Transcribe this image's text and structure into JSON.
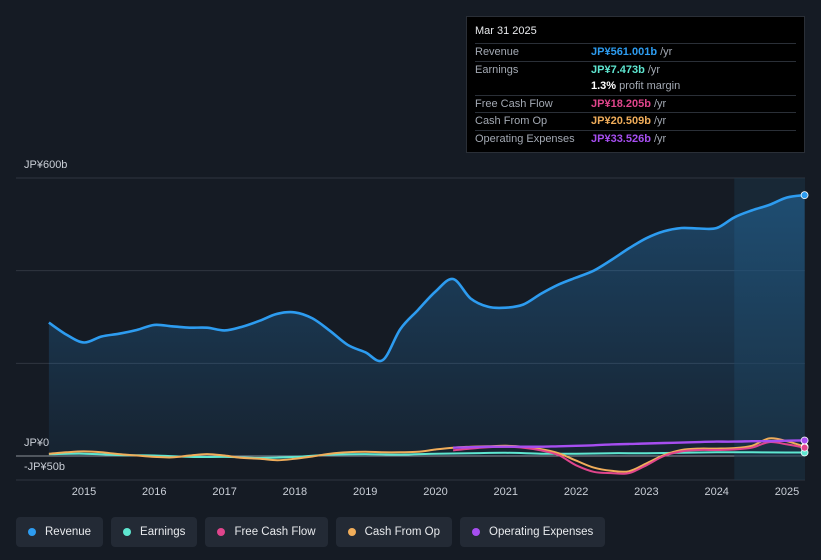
{
  "tooltip": {
    "date": "Mar 31 2025",
    "rows": [
      {
        "label": "Revenue",
        "value": "JP¥561.001b",
        "unit": "/yr",
        "color": "#2d9cf0"
      },
      {
        "label": "Earnings",
        "value": "JP¥7.473b",
        "unit": "/yr",
        "color": "#5ee6d0"
      },
      {
        "label": "",
        "value": "1.3%",
        "unit": "profit margin",
        "color": "#ffffff"
      },
      {
        "label": "Free Cash Flow",
        "value": "JP¥18.205b",
        "unit": "/yr",
        "color": "#e0458c"
      },
      {
        "label": "Cash From Op",
        "value": "JP¥20.509b",
        "unit": "/yr",
        "color": "#f0ad5a"
      },
      {
        "label": "Operating Expenses",
        "value": "JP¥33.526b",
        "unit": "/yr",
        "color": "#a64ef0"
      }
    ]
  },
  "legend": [
    {
      "label": "Revenue",
      "color": "#2d9cf0"
    },
    {
      "label": "Earnings",
      "color": "#5ee6d0"
    },
    {
      "label": "Free Cash Flow",
      "color": "#e0458c"
    },
    {
      "label": "Cash From Op",
      "color": "#f0ad5a"
    },
    {
      "label": "Operating Expenses",
      "color": "#a64ef0"
    }
  ],
  "chart_data": {
    "type": "line",
    "ylim": [
      -50,
      600
    ],
    "y_tick_labels": [
      {
        "value": 600,
        "label": "JP¥600b"
      },
      {
        "value": 0,
        "label": "JP¥0"
      },
      {
        "value": -50,
        "label": "-JP¥50b"
      }
    ],
    "x_ticks": [
      2015,
      2016,
      2017,
      2018,
      2019,
      2020,
      2021,
      2022,
      2023,
      2024,
      2025
    ],
    "xlim": [
      2014.45,
      2025.33
    ],
    "highlight_start": 2024.25,
    "series": [
      {
        "name": "Revenue",
        "color": "#2d9cf0",
        "x": [
          2014.5,
          2014.75,
          2015.0,
          2015.25,
          2015.5,
          2015.75,
          2016.0,
          2016.25,
          2016.5,
          2016.75,
          2017.0,
          2017.25,
          2017.5,
          2017.75,
          2018.0,
          2018.25,
          2018.5,
          2018.75,
          2019.0,
          2019.25,
          2019.5,
          2019.75,
          2020.0,
          2020.25,
          2020.5,
          2020.75,
          2021.0,
          2021.25,
          2021.5,
          2021.75,
          2022.0,
          2022.25,
          2022.5,
          2022.75,
          2023.0,
          2023.25,
          2023.5,
          2023.75,
          2024.0,
          2024.25,
          2024.5,
          2024.75,
          2025.0,
          2025.25
        ],
        "values": [
          288,
          262,
          245,
          258,
          264,
          272,
          283,
          280,
          277,
          277,
          271,
          279,
          292,
          307,
          310,
          297,
          270,
          240,
          224,
          207,
          274,
          315,
          355,
          382,
          340,
          322,
          320,
          327,
          350,
          370,
          385,
          400,
          423,
          448,
          470,
          485,
          492,
          491,
          492,
          515,
          530,
          542,
          558,
          563
        ]
      },
      {
        "name": "Earnings",
        "color": "#5ee6d0",
        "x": [
          2014.5,
          2015.0,
          2015.5,
          2016.0,
          2016.5,
          2017.0,
          2017.5,
          2018.0,
          2018.5,
          2019.0,
          2019.5,
          2020.0,
          2020.5,
          2021.0,
          2021.5,
          2022.0,
          2022.5,
          2023.0,
          2023.5,
          2024.0,
          2024.5,
          2025.0,
          2025.25
        ],
        "values": [
          4,
          5,
          2,
          1,
          -2,
          -2,
          -4,
          -2,
          3,
          4,
          3,
          5,
          6,
          7,
          5,
          5,
          6,
          6,
          7,
          8,
          8,
          7.5,
          7.5
        ]
      },
      {
        "name": "Free Cash Flow",
        "color": "#e0458c",
        "x": [
          2020.25,
          2020.5,
          2020.75,
          2021.0,
          2021.25,
          2021.5,
          2021.75,
          2022.0,
          2022.25,
          2022.5,
          2022.75,
          2023.0,
          2023.25,
          2023.5,
          2023.75,
          2024.0,
          2024.25,
          2024.5,
          2024.75,
          2025.0,
          2025.25
        ],
        "values": [
          12,
          16,
          19,
          20,
          18,
          12,
          2,
          -20,
          -34,
          -37,
          -37,
          -20,
          0,
          10,
          13,
          13,
          14,
          18,
          30,
          25,
          18
        ]
      },
      {
        "name": "Cash From Op",
        "color": "#f0ad5a",
        "x": [
          2014.5,
          2014.75,
          2015.0,
          2015.25,
          2015.5,
          2015.75,
          2016.0,
          2016.25,
          2016.5,
          2016.75,
          2017.0,
          2017.25,
          2017.5,
          2017.75,
          2018.0,
          2018.25,
          2018.5,
          2018.75,
          2019.0,
          2019.25,
          2019.5,
          2019.75,
          2020.0,
          2020.25,
          2020.5,
          2020.75,
          2021.0,
          2021.25,
          2021.5,
          2021.75,
          2022.0,
          2022.25,
          2022.5,
          2022.75,
          2023.0,
          2023.25,
          2023.5,
          2023.75,
          2024.0,
          2024.25,
          2024.5,
          2024.75,
          2025.0,
          2025.25
        ],
        "values": [
          5,
          8,
          10,
          8,
          4,
          1,
          -2,
          -3,
          1,
          4,
          1,
          -4,
          -6,
          -9,
          -6,
          -1,
          5,
          8,
          9,
          8,
          8,
          9,
          14,
          18,
          20,
          21,
          22,
          20,
          15,
          6,
          -10,
          -25,
          -32,
          -33,
          -16,
          2,
          13,
          16,
          16,
          17,
          22,
          38,
          32,
          20
        ]
      },
      {
        "name": "Operating Expenses",
        "color": "#a64ef0",
        "x": [
          2020.25,
          2020.5,
          2020.75,
          2021.0,
          2021.25,
          2021.5,
          2021.75,
          2022.0,
          2022.25,
          2022.5,
          2022.75,
          2023.0,
          2023.25,
          2023.5,
          2023.75,
          2024.0,
          2024.25,
          2024.5,
          2024.75,
          2025.0,
          2025.25
        ],
        "values": [
          18,
          19,
          20,
          20,
          20,
          20,
          21,
          22,
          23,
          25,
          26,
          27,
          28,
          29,
          30,
          31,
          31,
          32,
          32,
          33,
          33.5
        ]
      }
    ]
  }
}
